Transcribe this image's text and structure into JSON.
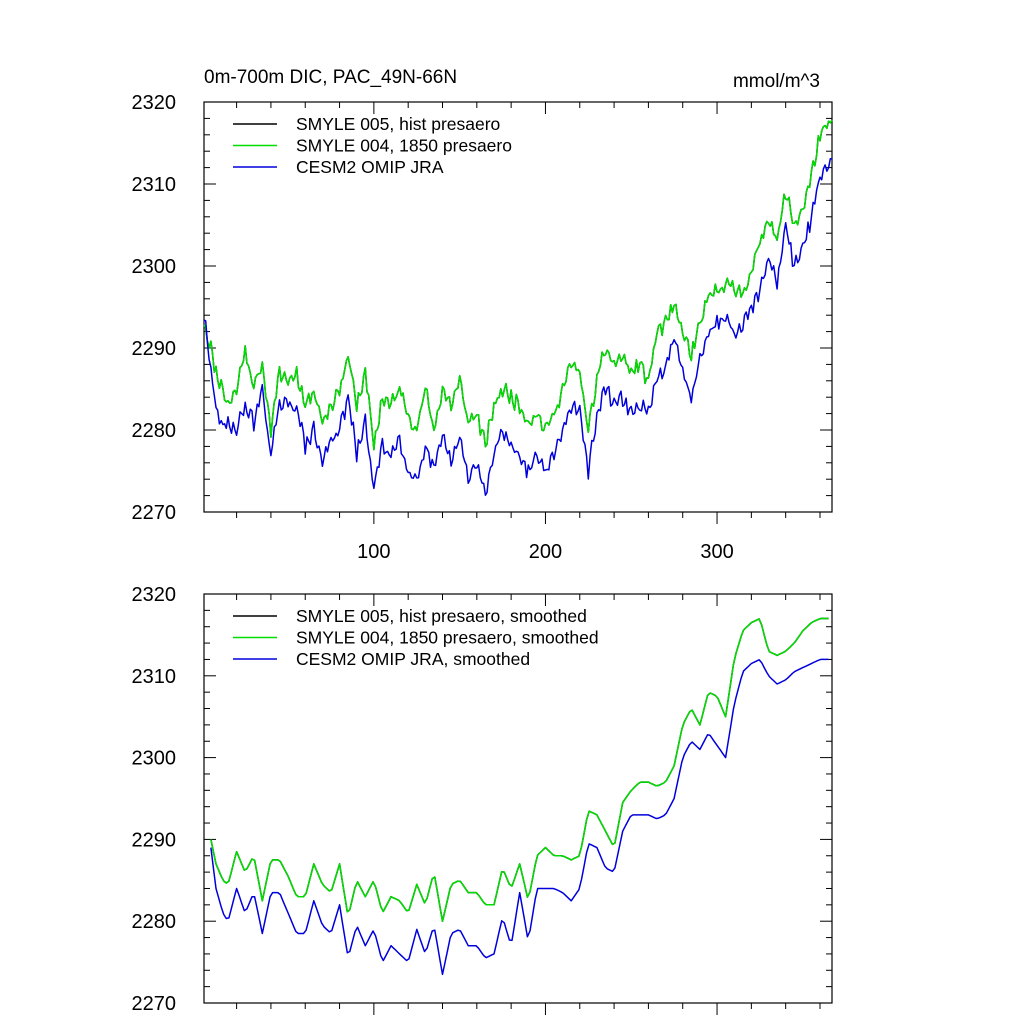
{
  "chart_data": [
    {
      "type": "line",
      "title": "0m-700m DIC, PAC_49N-66N",
      "units_label": "mmol/m^3",
      "xlim": [
        1,
        367
      ],
      "ylim": [
        2270,
        2320
      ],
      "xticks": [
        100,
        200,
        300
      ],
      "yticks": [
        2270,
        2280,
        2290,
        2300,
        2310,
        2320
      ],
      "x_tick_labels_shown": true,
      "legend_position": "top-left",
      "grid": false,
      "x_anchor": [
        1,
        5,
        8,
        12,
        15,
        20,
        25,
        30,
        35,
        40,
        45,
        50,
        55,
        60,
        65,
        70,
        75,
        80,
        85,
        90,
        95,
        100,
        105,
        110,
        115,
        120,
        125,
        130,
        135,
        140,
        145,
        150,
        155,
        160,
        165,
        170,
        175,
        180,
        185,
        190,
        195,
        200,
        205,
        210,
        215,
        220,
        225,
        230,
        235,
        240,
        245,
        250,
        255,
        260,
        265,
        270,
        275,
        280,
        285,
        290,
        295,
        300,
        305,
        310,
        315,
        320,
        325,
        330,
        335,
        340,
        345,
        350,
        355,
        360,
        365,
        367
      ],
      "series": [
        {
          "name": "SMYLE 005, hist presaero",
          "color": "#000000",
          "y_anchor": [
            2293,
            2290,
            2287,
            2285,
            2283,
            2285,
            2290,
            2285,
            2288,
            2280,
            2287,
            2286,
            2287,
            2283,
            2285,
            2281,
            2283,
            2285,
            2289,
            2283,
            2287,
            2278,
            2284,
            2283,
            2285,
            2282,
            2280,
            2285,
            2280,
            2285,
            2283,
            2286,
            2281,
            2282,
            2278,
            2283,
            2285,
            2284,
            2283,
            2281,
            2282,
            2280,
            2282,
            2285,
            2288,
            2287,
            2280,
            2286,
            2290,
            2288,
            2289,
            2287,
            2288,
            2286,
            2292,
            2293,
            2295,
            2292,
            2289,
            2293,
            2296,
            2297,
            2298,
            2297,
            2297,
            2299,
            2303,
            2306,
            2303,
            2309,
            2305,
            2307,
            2311,
            2316,
            2317,
            2318
          ]
        },
        {
          "name": "SMYLE 004, 1850 presaero",
          "color": "#00dd00",
          "y_anchor": [
            2293,
            2290,
            2287,
            2285,
            2283,
            2285,
            2290,
            2285,
            2288,
            2280,
            2287,
            2286,
            2287,
            2283,
            2285,
            2281,
            2283,
            2285,
            2289,
            2283,
            2287,
            2278,
            2284,
            2283,
            2285,
            2282,
            2280,
            2285,
            2280,
            2285,
            2283,
            2286,
            2281,
            2282,
            2278,
            2283,
            2285,
            2284,
            2283,
            2281,
            2282,
            2280,
            2282,
            2285,
            2288,
            2287,
            2280,
            2286,
            2290,
            2288,
            2289,
            2287,
            2288,
            2286,
            2292,
            2293,
            2295,
            2292,
            2289,
            2293,
            2296,
            2297,
            2298,
            2297,
            2297,
            2299,
            2303,
            2306,
            2303,
            2309,
            2305,
            2307,
            2311,
            2316,
            2317,
            2318
          ]
        },
        {
          "name": "CESM2 OMIP JRA",
          "color": "#0000dd",
          "y_anchor": [
            2294,
            2287,
            2283,
            2280,
            2281,
            2280,
            2283,
            2281,
            2285,
            2277,
            2283,
            2283,
            2283,
            2278,
            2280,
            2276,
            2279,
            2280,
            2284,
            2277,
            2281,
            2273,
            2278,
            2277,
            2279,
            2275,
            2274,
            2278,
            2275,
            2279,
            2276,
            2279,
            2274,
            2276,
            2272,
            2277,
            2280,
            2278,
            2277,
            2275,
            2277,
            2275,
            2277,
            2280,
            2283,
            2282,
            2275,
            2282,
            2285,
            2283,
            2284,
            2282,
            2283,
            2282,
            2286,
            2288,
            2291,
            2287,
            2284,
            2289,
            2292,
            2293,
            2294,
            2292,
            2293,
            2295,
            2297,
            2301,
            2298,
            2305,
            2300,
            2302,
            2306,
            2311,
            2312,
            2314
          ]
        }
      ]
    },
    {
      "type": "line",
      "xlim": [
        1,
        367
      ],
      "ylim": [
        2270,
        2320
      ],
      "xticks": [
        100,
        200,
        300
      ],
      "yticks": [
        2270,
        2280,
        2290,
        2300,
        2310,
        2320
      ],
      "x_tick_labels_shown": false,
      "legend_position": "top-left",
      "grid": false,
      "x_anchor": [
        5,
        8,
        12,
        15,
        20,
        25,
        30,
        35,
        40,
        45,
        50,
        55,
        60,
        65,
        70,
        75,
        80,
        85,
        90,
        95,
        100,
        105,
        110,
        115,
        120,
        125,
        130,
        135,
        140,
        145,
        150,
        155,
        160,
        165,
        170,
        175,
        180,
        185,
        190,
        195,
        200,
        205,
        210,
        215,
        220,
        225,
        230,
        235,
        240,
        245,
        250,
        255,
        260,
        265,
        270,
        275,
        280,
        285,
        290,
        295,
        300,
        305,
        310,
        315,
        320,
        325,
        330,
        335,
        340,
        345,
        350,
        355,
        360,
        365
      ],
      "series": [
        {
          "name": "SMYLE 005, hist presaero, smoothed",
          "color": "#000000",
          "y_anchor": [
            2290,
            2287,
            2285,
            2284.5,
            2288.5,
            2286,
            2288,
            2282.5,
            2287.5,
            2287.5,
            2285.5,
            2283,
            2283,
            2287,
            2284.5,
            2283.5,
            2287,
            2280.5,
            2285,
            2283,
            2285,
            2281,
            2283,
            2282.5,
            2281,
            2284.5,
            2282,
            2286,
            2280,
            2284.5,
            2285,
            2283.5,
            2283.5,
            2282,
            2282,
            2286.5,
            2284,
            2287,
            2282.5,
            2288,
            2289,
            2288,
            2288,
            2287.5,
            2288,
            2293.5,
            2293,
            2291,
            2289,
            2294.5,
            2296,
            2297,
            2297,
            2296.5,
            2297,
            2299,
            2304,
            2306,
            2304,
            2308,
            2307.5,
            2305,
            2312,
            2315.5,
            2316.5,
            2317,
            2313,
            2312.5,
            2313,
            2314,
            2315.5,
            2316.5,
            2317,
            2317
          ]
        },
        {
          "name": "SMYLE 004, 1850 presaero, smoothed",
          "color": "#00dd00",
          "y_anchor": [
            2290,
            2287,
            2285,
            2284.5,
            2288.5,
            2286,
            2288,
            2282.5,
            2287.5,
            2287.5,
            2285.5,
            2283,
            2283,
            2287,
            2284.5,
            2283.5,
            2287,
            2280.5,
            2285,
            2283,
            2285,
            2281,
            2283,
            2282.5,
            2281,
            2284.5,
            2282,
            2286,
            2280,
            2284.5,
            2285,
            2283.5,
            2283.5,
            2282,
            2282,
            2286.5,
            2284,
            2287,
            2282.5,
            2288,
            2289,
            2288,
            2288,
            2287.5,
            2288,
            2293.5,
            2293,
            2291,
            2289,
            2294.5,
            2296,
            2297,
            2297,
            2296.5,
            2297,
            2299,
            2304,
            2306,
            2304,
            2308,
            2307.5,
            2305,
            2312,
            2315.5,
            2316.5,
            2317,
            2313,
            2312.5,
            2313,
            2314,
            2315.5,
            2316.5,
            2317,
            2317
          ]
        },
        {
          "name": "CESM2 OMIP JRA, smoothed",
          "color": "#0000dd",
          "y_anchor": [
            2289,
            2284,
            2281,
            2280,
            2284,
            2281,
            2283.5,
            2278.5,
            2283.5,
            2283.5,
            2281,
            2278.5,
            2278.5,
            2282.5,
            2279.5,
            2278.5,
            2282,
            2275.5,
            2279.5,
            2277,
            2279,
            2275,
            2277,
            2276,
            2275,
            2279,
            2276,
            2279.5,
            2273.5,
            2278.5,
            2279,
            2277,
            2277,
            2275.5,
            2276,
            2280.5,
            2277,
            2283.5,
            2277.5,
            2284,
            2284,
            2284,
            2283.5,
            2282.5,
            2284,
            2289.5,
            2289,
            2286.5,
            2286,
            2291,
            2293,
            2293,
            2293,
            2292.5,
            2293,
            2295,
            2300,
            2302,
            2301,
            2303,
            2301.5,
            2300,
            2306.5,
            2310.5,
            2311.5,
            2312,
            2310,
            2309,
            2309.5,
            2310.5,
            2311,
            2311.5,
            2312,
            2312
          ]
        }
      ]
    }
  ]
}
